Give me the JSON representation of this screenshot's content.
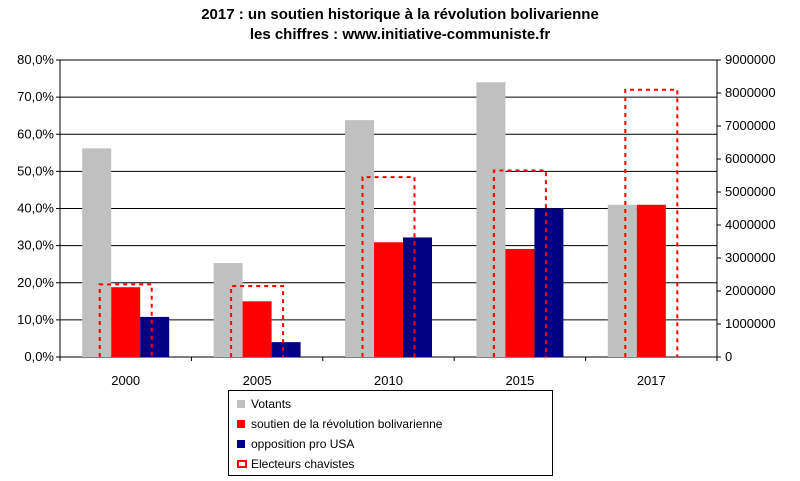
{
  "title": "2017 : un soutien historique à la révolution bolivarienne",
  "subtitle": "les chiffres : www.initiative-communiste.fr",
  "chart_data": {
    "type": "bar",
    "categories": [
      "2000",
      "2005",
      "2010",
      "2015",
      "2017"
    ],
    "left_axis": {
      "ylim": [
        0,
        80
      ],
      "ticks": [
        "0,0%",
        "10,0%",
        "20,0%",
        "30,0%",
        "40,0%",
        "50,0%",
        "60,0%",
        "70,0%",
        "80,0%"
      ]
    },
    "right_axis": {
      "ylim": [
        0,
        9000000
      ],
      "ticks": [
        "0",
        "1000000",
        "2000000",
        "3000000",
        "4000000",
        "5000000",
        "6000000",
        "7000000",
        "8000000",
        "9000000"
      ]
    },
    "series": [
      {
        "name": "Votants",
        "axis": "left",
        "style": "bar",
        "color": "#c0c0c0",
        "values": [
          56.2,
          25.3,
          63.8,
          74.0,
          41.0
        ]
      },
      {
        "name": "soutien de la révolution bolivarienne",
        "axis": "left",
        "style": "bar",
        "color": "#ff0000",
        "values": [
          18.8,
          15.0,
          30.9,
          29.1,
          41.0
        ]
      },
      {
        "name": "opposition pro USA",
        "axis": "left",
        "style": "bar",
        "color": "#000080",
        "values": [
          10.8,
          4.0,
          32.2,
          40.0,
          null
        ]
      },
      {
        "name": "Electeurs chavistes",
        "axis": "right",
        "style": "dashed-outline",
        "color": "#ff0000",
        "values": [
          2200000,
          2150000,
          5450000,
          5650000,
          8100000
        ]
      }
    ],
    "grid": true,
    "legend_position": "bottom"
  }
}
